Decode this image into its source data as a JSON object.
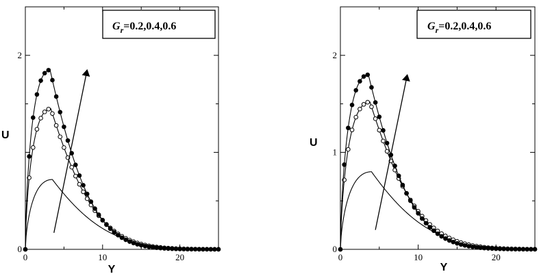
{
  "chart_data": [
    {
      "type": "line",
      "title": "",
      "xlabel": "Y",
      "ylabel": "U",
      "xlim": [
        0,
        25
      ],
      "ylim": [
        0,
        2.5
      ],
      "x_ticks": [
        "0",
        "10",
        "20"
      ],
      "x_tick_values": [
        0,
        10,
        20
      ],
      "y_ticks": [
        "0",
        "2"
      ],
      "y_tick_values": [
        0,
        2
      ],
      "grid": false,
      "legend_position": "top-right",
      "legend": {
        "main": "G",
        "subscript": "r",
        "values": "=0.2,0.4,0.6"
      },
      "annotation": "arrow indicating increasing G_r",
      "arrow": {
        "from": [
          3.7,
          0.17
        ],
        "to": [
          8.0,
          1.85
        ]
      },
      "series": [
        {
          "style": "line",
          "peak_x": 3.5,
          "peak_y": 0.72,
          "decay": 5.3
        },
        {
          "style": "open-circles",
          "peak_x": 3.3,
          "peak_y": 1.45,
          "decay": 4.4
        },
        {
          "style": "filled-circles",
          "peak_x": 3.2,
          "peak_y": 1.85,
          "decay": 4.0
        }
      ]
    },
    {
      "type": "line",
      "title": "",
      "xlabel": "Y",
      "ylabel": "U",
      "xlim": [
        0,
        25
      ],
      "ylim": [
        0,
        2.5
      ],
      "x_ticks": [
        "0",
        "10",
        "20"
      ],
      "x_tick_values": [
        0,
        10,
        20
      ],
      "y_ticks": [
        "0",
        "1",
        "2"
      ],
      "y_tick_values": [
        0,
        1,
        2
      ],
      "grid": false,
      "legend_position": "top-right",
      "legend": {
        "main": "G",
        "subscript": "r",
        "values": "=0.2,0.4,0.6"
      },
      "annotation": "arrow indicating increasing G_r",
      "arrow": {
        "from": [
          4.5,
          0.2
        ],
        "to": [
          8.6,
          1.8
        ]
      },
      "series": [
        {
          "style": "line",
          "peak_x": 4.0,
          "peak_y": 0.8,
          "decay": 5.5
        },
        {
          "style": "open-circles",
          "peak_x": 3.8,
          "peak_y": 1.52,
          "decay": 4.6
        },
        {
          "style": "filled-circles",
          "peak_x": 3.6,
          "peak_y": 1.8,
          "decay": 4.2
        }
      ]
    }
  ]
}
